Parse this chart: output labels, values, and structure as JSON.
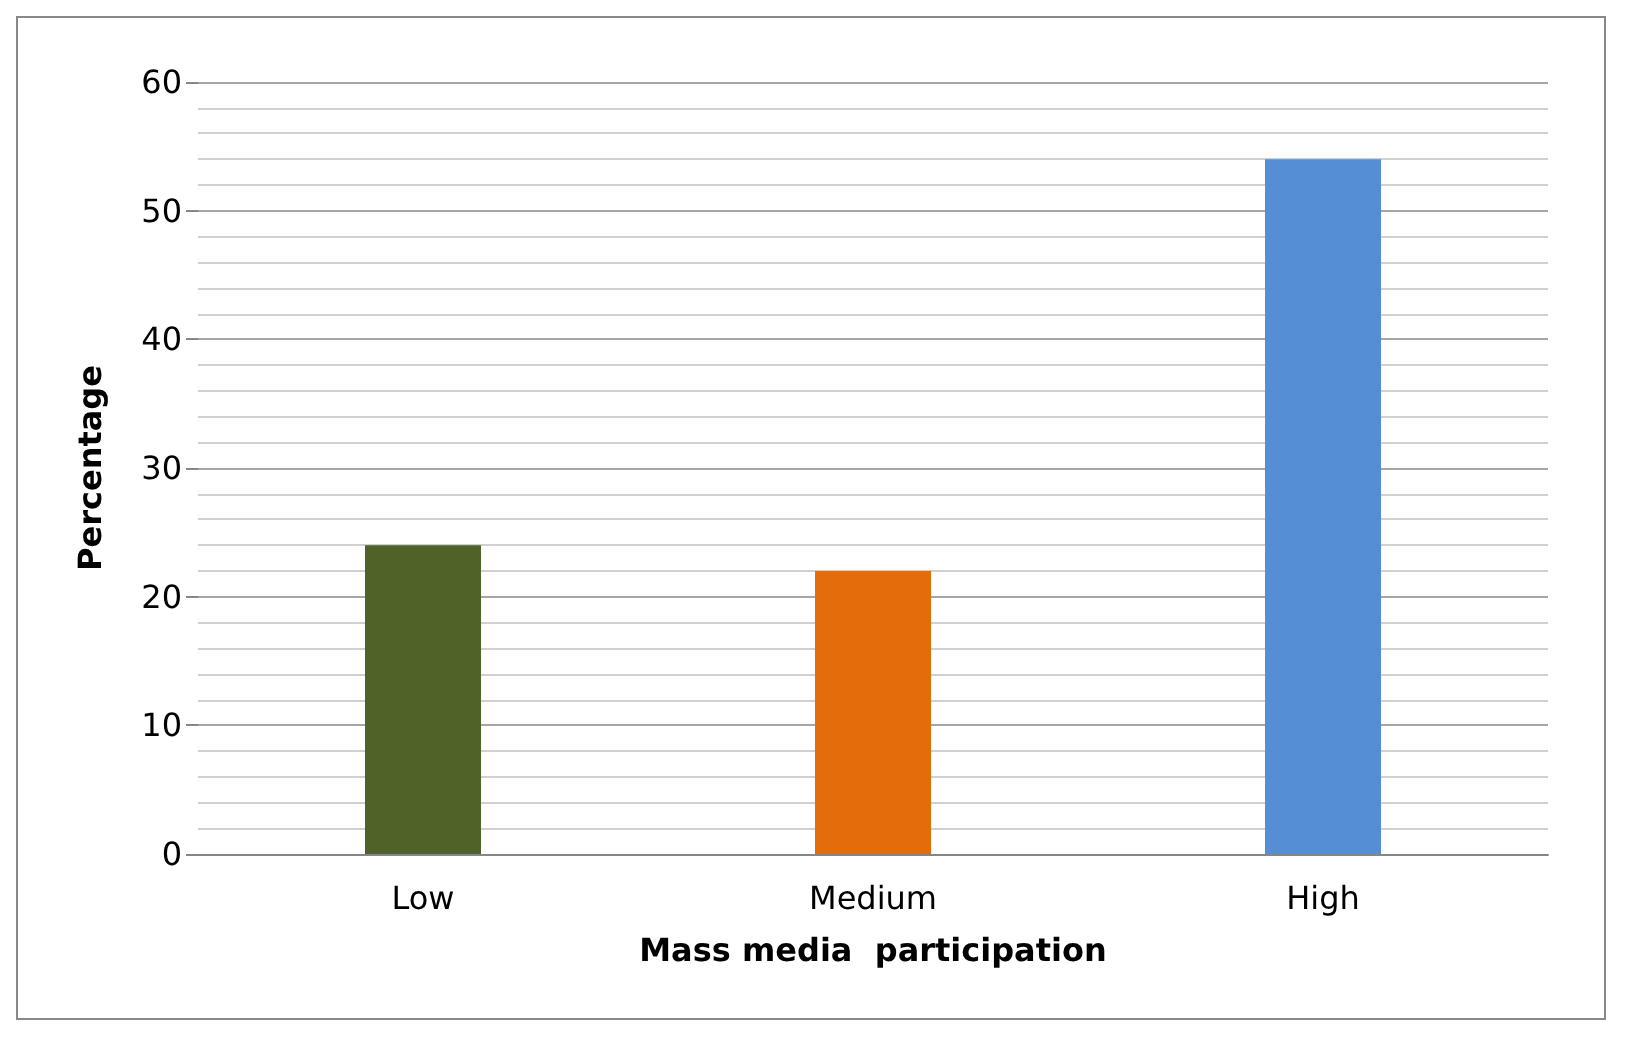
{
  "chart_data": {
    "type": "bar",
    "xlabel": "Mass media  participation",
    "ylabel": "Percentage",
    "categories": [
      "Low",
      "Medium",
      "High"
    ],
    "values": [
      24,
      22,
      54
    ],
    "colors": [
      "#4f6228",
      "#e46c0a",
      "#558ed5"
    ],
    "ylim": [
      0,
      60
    ],
    "yticks": [
      0,
      10,
      20,
      30,
      40,
      50,
      60
    ],
    "grid": "y"
  }
}
